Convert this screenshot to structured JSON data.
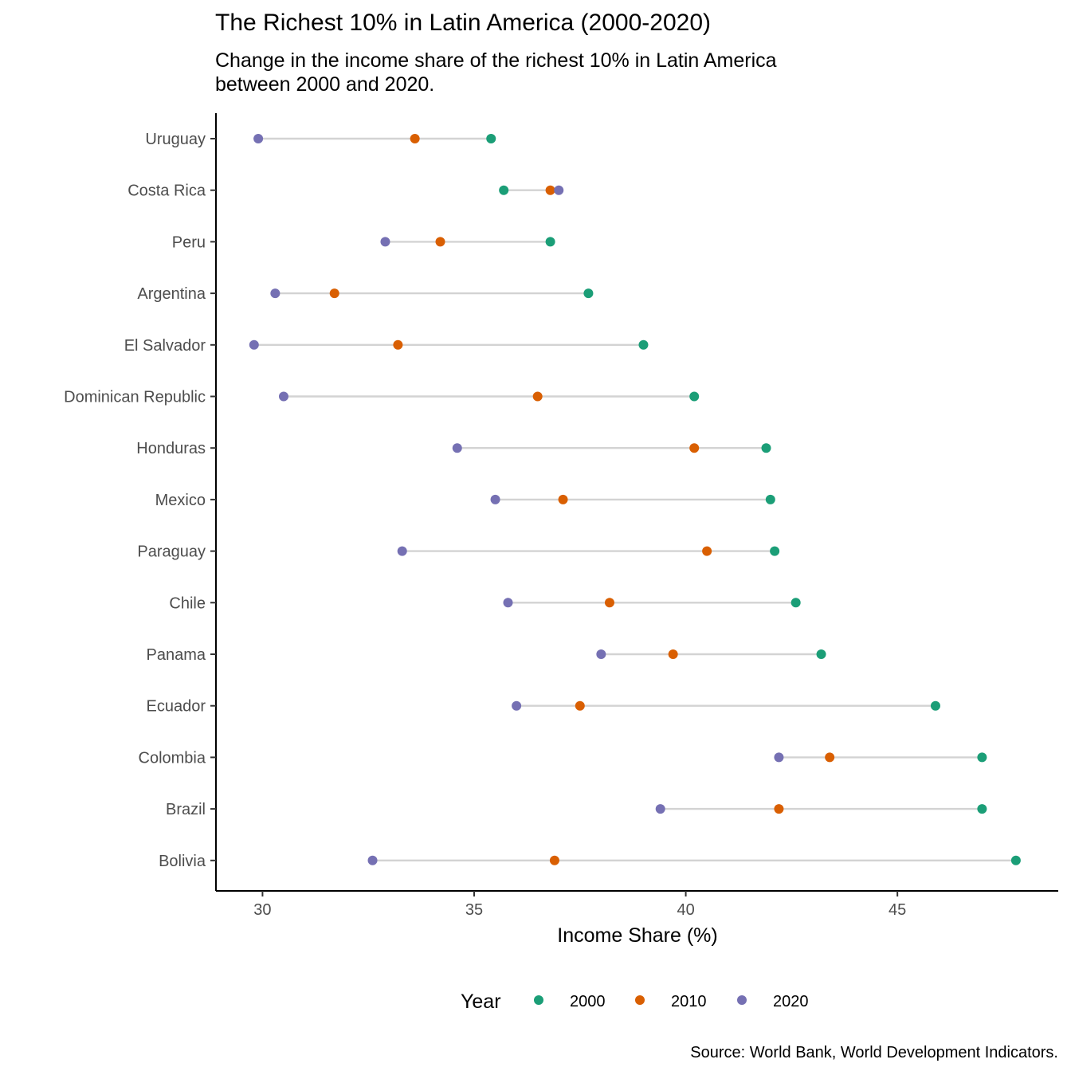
{
  "chart_data": {
    "type": "dumbbell",
    "title": "The Richest 10% in Latin America (2000-2020)",
    "subtitle_lines": [
      "Change in the income share of the richest 10% in Latin America",
      "between 2000 and 2020."
    ],
    "xlabel": "Income Share (%)",
    "ylabel": "",
    "xlim": [
      28.9,
      48.8
    ],
    "x_ticks": [
      30,
      35,
      40,
      45
    ],
    "grid": false,
    "legend": {
      "title": "Year",
      "position": "bottom",
      "entries": [
        "2000",
        "2010",
        "2020"
      ]
    },
    "colors": {
      "2000": "#1b9e77",
      "2010": "#d95f02",
      "2020": "#7570b3",
      "segment": "#d3d3d3"
    },
    "caption": "Source: World Bank, World Development Indicators.",
    "categories": [
      "Uruguay",
      "Costa Rica",
      "Peru",
      "Argentina",
      "El Salvador",
      "Dominican Republic",
      "Honduras",
      "Mexico",
      "Paraguay",
      "Chile",
      "Panama",
      "Ecuador",
      "Colombia",
      "Brazil",
      "Bolivia"
    ],
    "series": [
      {
        "name": "2000",
        "values": [
          35.4,
          35.7,
          36.8,
          37.7,
          39.0,
          40.2,
          41.9,
          42.0,
          42.1,
          42.6,
          43.2,
          45.9,
          47.0,
          47.0,
          47.8
        ]
      },
      {
        "name": "2010",
        "values": [
          33.6,
          36.8,
          34.2,
          31.7,
          33.2,
          36.5,
          40.2,
          37.1,
          40.5,
          38.2,
          39.7,
          37.5,
          43.4,
          42.2,
          36.9
        ]
      },
      {
        "name": "2020",
        "values": [
          29.9,
          37.0,
          32.9,
          30.3,
          29.8,
          30.5,
          34.6,
          35.5,
          33.3,
          35.8,
          38.0,
          36.0,
          42.2,
          39.4,
          32.6
        ]
      }
    ]
  }
}
